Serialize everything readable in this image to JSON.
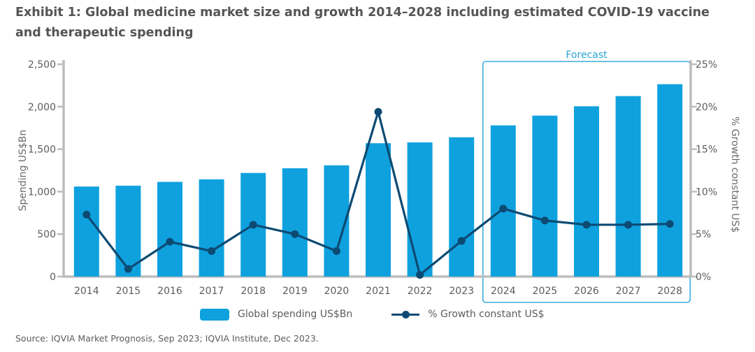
{
  "title": "Exhibit 1: Global medicine market size and growth 2014–2028 including estimated COVID-19 vaccine and therapeutic spending",
  "source": "Source: IQVIA Market Prognosis, Sep 2023; IQVIA Institute, Dec 2023.",
  "colors": {
    "bar": "#0ea1de",
    "line": "#0d4a73",
    "forecast_box": "#3aaee0",
    "axis": "#bdbdbd"
  },
  "chart_data": {
    "type": "bar+line",
    "categories": [
      "2014",
      "2015",
      "2016",
      "2017",
      "2018",
      "2019",
      "2020",
      "2021",
      "2022",
      "2023",
      "2024",
      "2025",
      "2026",
      "2027",
      "2028"
    ],
    "series": [
      {
        "name": "Global spending US$Bn",
        "type": "bar",
        "axis": "left",
        "values": [
          1060,
          1070,
          1115,
          1145,
          1220,
          1275,
          1310,
          1570,
          1580,
          1640,
          1780,
          1895,
          2005,
          2125,
          2265
        ]
      },
      {
        "name": "% Growth constant US$",
        "type": "line",
        "axis": "right",
        "values": [
          7.3,
          0.9,
          4.1,
          3.0,
          6.1,
          5.0,
          3.0,
          19.4,
          0.2,
          4.2,
          8.0,
          6.6,
          6.1,
          6.1,
          6.2
        ]
      }
    ],
    "ylabel": "Spending US$Bn",
    "y2label": "% Growth constant US$",
    "ylim": [
      0,
      2500
    ],
    "y2lim": [
      0,
      25
    ],
    "yticks": [
      "0",
      "500",
      "1,000",
      "1,500",
      "2,000",
      "2,500"
    ],
    "y2ticks": [
      "0%",
      "5%",
      "10%",
      "15%",
      "20%",
      "25%"
    ],
    "forecast": {
      "label": "Forecast",
      "from": "2024",
      "to": "2028"
    },
    "grid": false,
    "legend_position": "bottom"
  }
}
